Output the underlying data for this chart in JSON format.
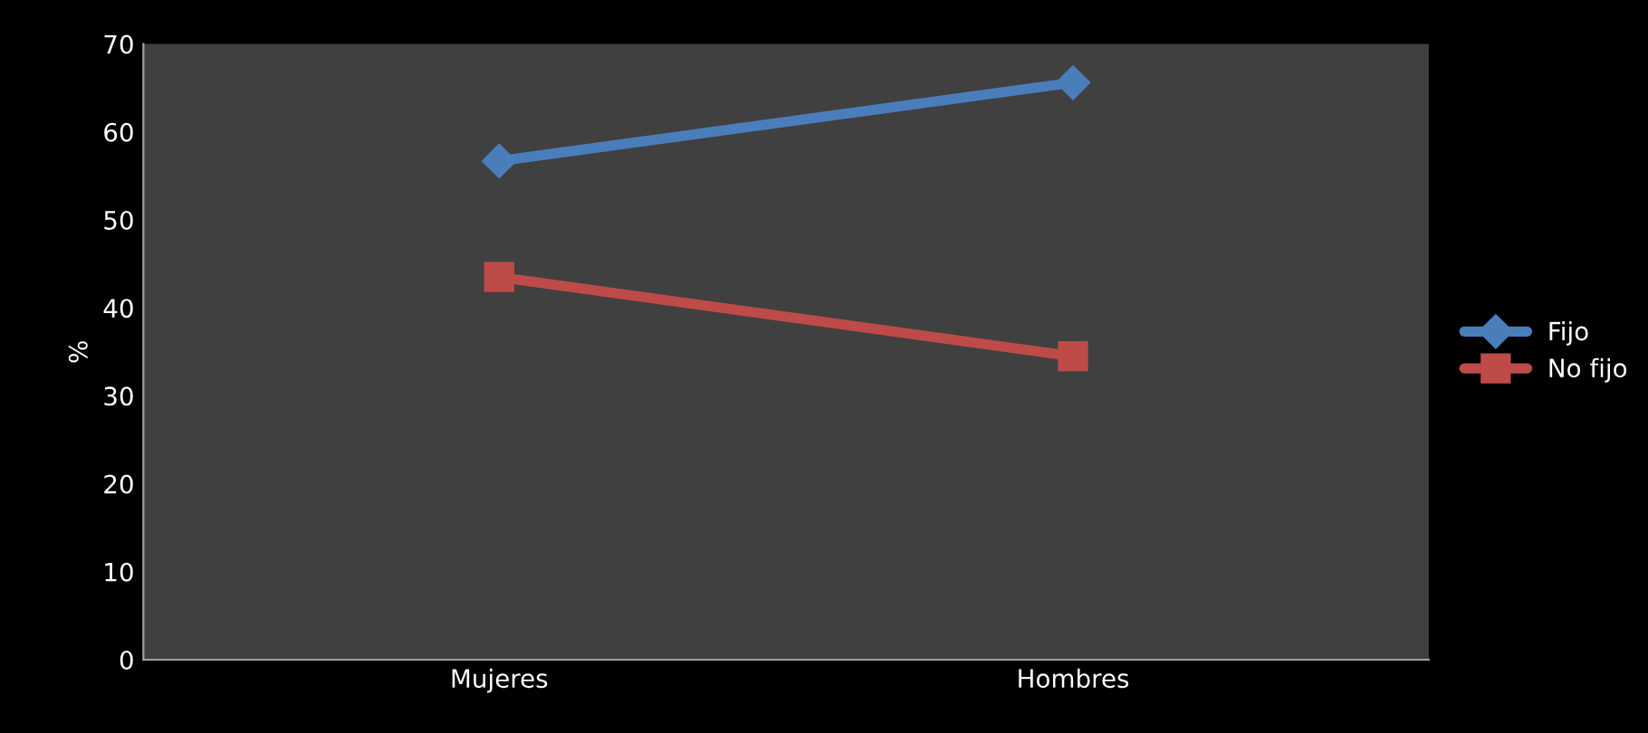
{
  "chart_data": {
    "type": "line",
    "ylabel": "%",
    "categories": [
      "Mujeres",
      "Hombres"
    ],
    "series": [
      {
        "name": "Fijo",
        "color": "#4a7ebb",
        "marker": "diamond",
        "values": [
          56.7,
          65.6
        ]
      },
      {
        "name": "No fijo",
        "color": "#be4b48",
        "marker": "square",
        "values": [
          43.5,
          34.5
        ]
      }
    ],
    "ylim": [
      0,
      70
    ],
    "yticks": [
      0,
      10,
      20,
      30,
      40,
      50,
      60,
      70
    ],
    "grid": false,
    "legend": "right",
    "line_style": "solid"
  }
}
